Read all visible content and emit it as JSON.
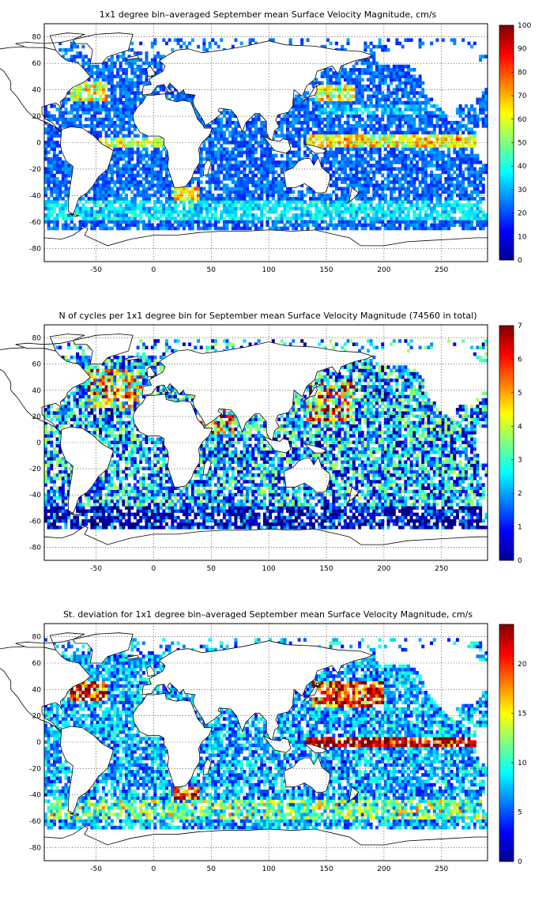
{
  "figure": {
    "panels": [
      {
        "title": "1x1 degree bin–averaged September mean Surface Velocity Magnitude, cm/s",
        "colorbar": {
          "min": 0,
          "max": 100,
          "ticks": [
            "0",
            "10",
            "20",
            "30",
            "40",
            "50",
            "60",
            "70",
            "80",
            "90",
            "100"
          ]
        }
      },
      {
        "title": "N of cycles per 1x1 degree bin for September mean Surface Velocity Magnitude (74560 in total)",
        "colorbar": {
          "min": 0,
          "max": 7,
          "ticks": [
            "0",
            "1",
            "2",
            "3",
            "4",
            "5",
            "6",
            "7"
          ]
        }
      },
      {
        "title": "St. deviation for 1x1 degree bin–averaged September mean Surface Velocity Magnitude, cm/s",
        "colorbar": {
          "min": 0,
          "max": 24,
          "ticks": [
            "0",
            "5",
            "10",
            "15",
            "20"
          ]
        }
      }
    ],
    "x_ticks": [
      "-50",
      "0",
      "50",
      "100",
      "150",
      "200",
      "250"
    ],
    "y_ticks": [
      "80",
      "60",
      "40",
      "20",
      "0",
      "-20",
      "-40",
      "-60",
      "-80"
    ],
    "colormap": "jet",
    "coastline_color": "#000000",
    "grid_color": "#000000"
  },
  "chart_data": [
    {
      "type": "heatmap",
      "title": "1x1 degree bin–averaged September mean Surface Velocity Magnitude, cm/s",
      "xlim": [
        -95,
        290
      ],
      "ylim": [
        -90,
        90
      ],
      "grid": true,
      "grid_style": "dotted",
      "colorbar_range": [
        0,
        100
      ],
      "regions_high": [
        "Gulf Stream",
        "Kuroshio",
        "Equatorial Pacific",
        "Equatorial Atlantic",
        "Agulhas",
        "Antarctic Circumpolar"
      ],
      "x_ticks": [
        -50,
        0,
        50,
        100,
        150,
        200,
        250
      ],
      "y_ticks": [
        80,
        60,
        40,
        20,
        0,
        -20,
        -40,
        -60,
        -80
      ]
    },
    {
      "type": "heatmap",
      "title": "N of cycles per 1x1 degree bin for September mean Surface Velocity Magnitude (74560 in total)",
      "xlim": [
        -95,
        290
      ],
      "ylim": [
        -90,
        90
      ],
      "grid": true,
      "grid_style": "dotted",
      "colorbar_range": [
        0,
        7
      ],
      "regions_high": [
        "North Atlantic",
        "Kuroshio",
        "Red Sea / Arabian Sea",
        "Western North Pacific"
      ],
      "x_ticks": [
        -50,
        0,
        50,
        100,
        150,
        200,
        250
      ],
      "y_ticks": [
        80,
        60,
        40,
        20,
        0,
        -20,
        -40,
        -60,
        -80
      ]
    },
    {
      "type": "heatmap",
      "title": "St. deviation for 1x1 degree bin–averaged September mean Surface Velocity Magnitude, cm/s",
      "xlim": [
        -95,
        290
      ],
      "ylim": [
        -90,
        90
      ],
      "grid": true,
      "grid_style": "dotted",
      "colorbar_range": [
        0,
        24
      ],
      "regions_high": [
        "Gulf Stream",
        "Kuroshio",
        "Equatorial Pacific",
        "Agulhas"
      ],
      "x_ticks": [
        -50,
        0,
        50,
        100,
        150,
        200,
        250
      ],
      "y_ticks": [
        80,
        60,
        40,
        20,
        0,
        -20,
        -40,
        -60,
        -80
      ]
    }
  ]
}
